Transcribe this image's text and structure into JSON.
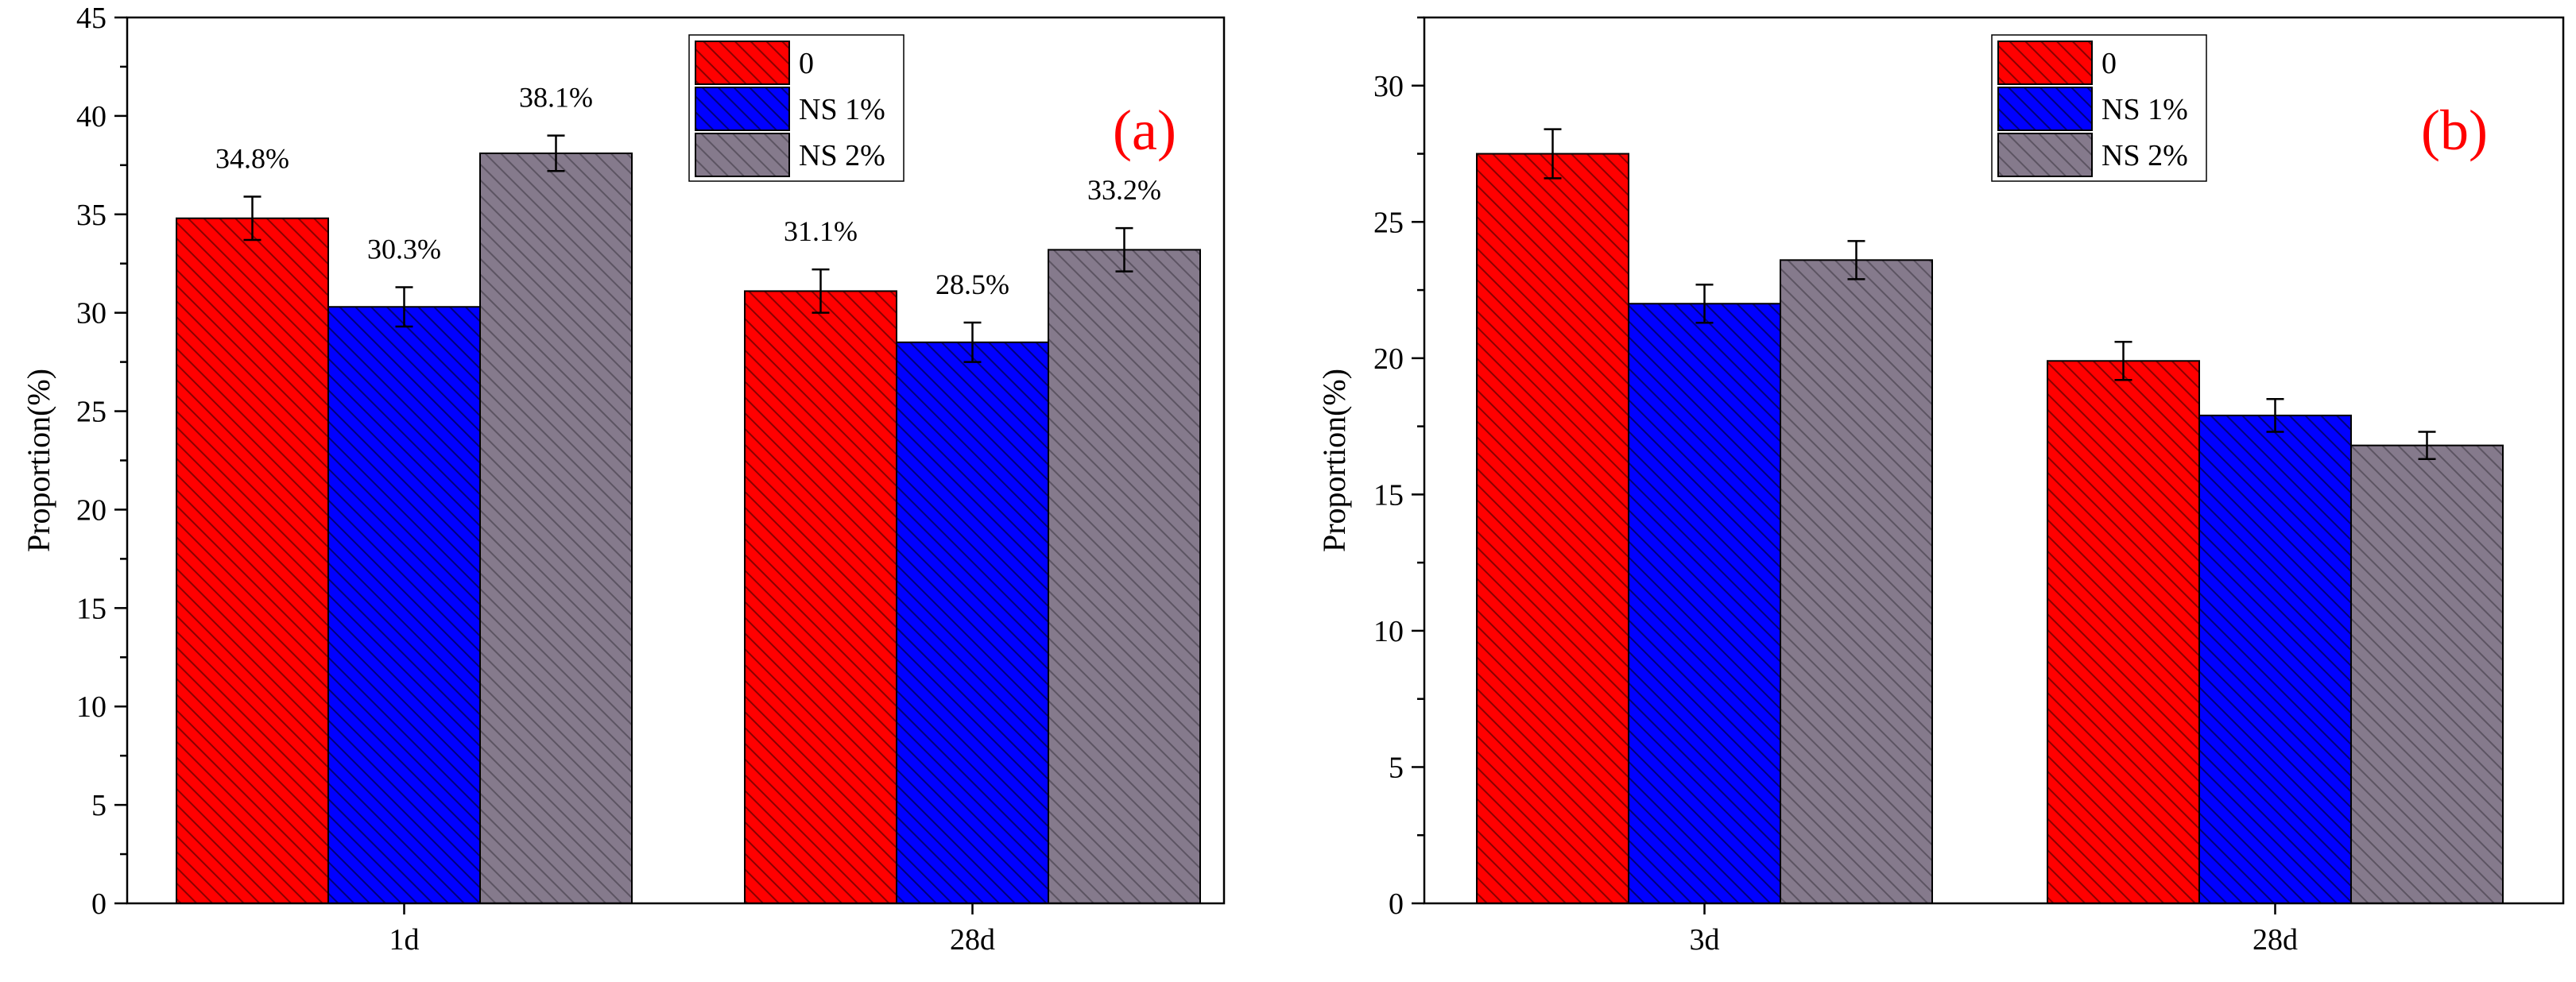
{
  "chart_data": [
    {
      "type": "bar",
      "panel_label": "(a)",
      "title": "",
      "xlabel": "",
      "ylabel": "Proportion(%)",
      "ylim": [
        0,
        45
      ],
      "yticks": [
        0,
        5,
        10,
        15,
        20,
        25,
        30,
        35,
        40,
        45
      ],
      "grid": false,
      "legend_position": "top-center",
      "categories": [
        "1d",
        "28d"
      ],
      "series": [
        {
          "name": "0",
          "values": [
            34.8,
            31.1
          ],
          "errors": [
            1.1,
            1.1
          ],
          "labels": [
            "34.8%",
            "31.1%"
          ],
          "color": "#ff0000",
          "hatch_color": "#8a0000"
        },
        {
          "name": "NS 1%",
          "values": [
            30.3,
            28.5
          ],
          "errors": [
            1.0,
            1.0
          ],
          "labels": [
            "30.3%",
            "28.5%"
          ],
          "color": "#0000ff",
          "hatch_color": "#00007a"
        },
        {
          "name": "NS 2%",
          "values": [
            38.1,
            33.2
          ],
          "errors": [
            0.9,
            1.1
          ],
          "labels": [
            "38.1%",
            "33.2%"
          ],
          "color": "#857a8c",
          "hatch_color": "#5c5462"
        }
      ]
    },
    {
      "type": "bar",
      "panel_label": "(b)",
      "title": "",
      "xlabel": "",
      "ylabel": "Proportion(%)",
      "ylim": [
        0,
        32.5
      ],
      "yticks": [
        0,
        5,
        10,
        15,
        20,
        25,
        30
      ],
      "grid": false,
      "legend_position": "top-center",
      "categories": [
        "3d",
        "28d"
      ],
      "series": [
        {
          "name": "0",
          "values": [
            27.5,
            19.9
          ],
          "errors": [
            0.9,
            0.7
          ],
          "labels": [],
          "color": "#ff0000",
          "hatch_color": "#8a0000"
        },
        {
          "name": "NS 1%",
          "values": [
            22.0,
            17.9
          ],
          "errors": [
            0.7,
            0.6
          ],
          "labels": [],
          "color": "#0000ff",
          "hatch_color": "#00007a"
        },
        {
          "name": "NS 2%",
          "values": [
            23.6,
            16.8
          ],
          "errors": [
            0.7,
            0.5
          ],
          "labels": [],
          "color": "#857a8c",
          "hatch_color": "#5c5462"
        }
      ]
    }
  ]
}
